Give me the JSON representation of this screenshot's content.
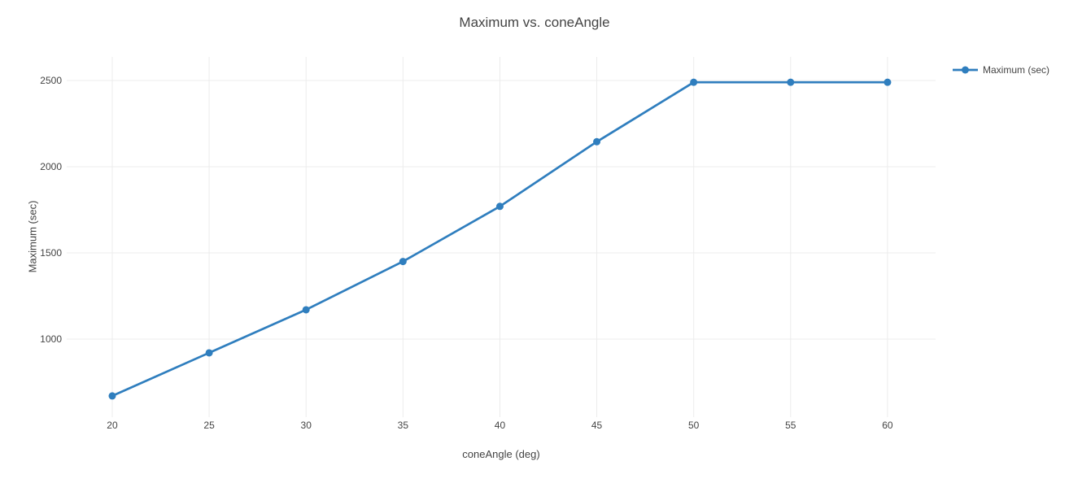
{
  "chart_data": {
    "type": "line",
    "title": "Maximum vs. coneAngle",
    "xlabel": "coneAngle (deg)",
    "ylabel": "Maximum (sec)",
    "series": [
      {
        "name": "Maximum (sec)",
        "x": [
          20,
          25,
          30,
          35,
          40,
          45,
          50,
          55,
          60
        ],
        "y": [
          670,
          920,
          1170,
          1450,
          1770,
          2145,
          2490,
          2490,
          2490
        ]
      }
    ],
    "xticks": [
      20,
      25,
      30,
      35,
      40,
      45,
      50,
      55,
      60
    ],
    "yticks": [
      1000,
      1500,
      2000,
      2500
    ],
    "xlim": [
      17.65,
      62.48
    ],
    "ylim": [
      547,
      2637
    ],
    "grid": true,
    "legend_position": "top-right",
    "marker": "circle",
    "colors": {
      "line": "#2f7ebe",
      "grid": "#ececec",
      "text": "#444444",
      "background": "#ffffff"
    }
  }
}
